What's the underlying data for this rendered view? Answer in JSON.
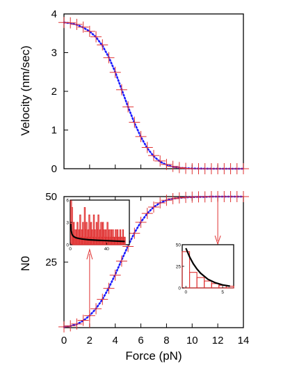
{
  "chart_data": [
    {
      "type": "line",
      "ylabel": "Velocity (nm/sec)",
      "xlim": [
        0,
        14
      ],
      "ylim": [
        0,
        4
      ],
      "y_ticks": [
        "0",
        "1",
        "2",
        "3",
        "4"
      ],
      "series": [
        {
          "style": "dotted-curve",
          "color": "#1a1aff",
          "x": [
            0,
            0.5,
            1,
            1.5,
            2,
            2.5,
            3,
            3.5,
            4,
            4.5,
            5,
            5.5,
            6,
            6.5,
            7,
            7.5,
            8,
            8.5,
            9,
            9.5,
            10,
            10.5,
            11,
            11.5,
            12,
            12.5,
            13,
            13.5,
            14
          ],
          "y": [
            3.78,
            3.76,
            3.72,
            3.65,
            3.55,
            3.4,
            3.18,
            2.88,
            2.5,
            2.05,
            1.6,
            1.18,
            0.82,
            0.53,
            0.32,
            0.18,
            0.1,
            0.05,
            0.025,
            0.012,
            0.006,
            0.003,
            0.001,
            0.0005,
            0,
            0,
            0,
            0,
            0
          ]
        },
        {
          "style": "crosses",
          "color": "#e03030",
          "x": [
            0,
            0.5,
            1,
            1.5,
            2,
            2.5,
            3,
            3.5,
            4,
            4.5,
            5,
            5.5,
            6,
            6.5,
            7,
            7.5,
            8,
            8.5,
            9,
            9.5,
            10,
            10.5,
            11,
            11.5,
            12,
            12.5,
            13,
            13.5,
            14
          ],
          "y": [
            3.78,
            3.77,
            3.73,
            3.66,
            3.55,
            3.41,
            3.2,
            2.87,
            2.49,
            2.04,
            1.6,
            1.2,
            0.83,
            0.55,
            0.34,
            0.2,
            0.11,
            0.06,
            0.03,
            0.01,
            0.0,
            0.0,
            0.0,
            0.0,
            0.0,
            0.0,
            0.0,
            0.0,
            0.0
          ]
        }
      ]
    },
    {
      "type": "line",
      "xlabel": "Force (pN)",
      "ylabel": "N0",
      "xlim": [
        0,
        14
      ],
      "ylim": [
        0,
        50
      ],
      "x_ticks": [
        "0",
        "2",
        "4",
        "6",
        "8",
        "10",
        "12",
        "14"
      ],
      "y_ticks": [
        "25",
        "50"
      ],
      "series": [
        {
          "style": "dotted-curve",
          "color": "#1a1aff",
          "x": [
            0,
            0.5,
            1,
            1.5,
            2,
            2.5,
            3,
            3.5,
            4,
            4.5,
            5,
            5.5,
            6,
            6.5,
            7,
            7.5,
            8,
            8.5,
            9,
            9.5,
            10,
            10.5,
            11,
            11.5,
            12,
            12.5,
            13,
            13.5,
            14
          ],
          "y": [
            0.3,
            0.6,
            1.3,
            2.6,
            4.6,
            7.3,
            10.8,
            15.2,
            20.3,
            25.8,
            31.2,
            36.2,
            40.3,
            43.6,
            46.0,
            47.6,
            48.6,
            49.2,
            49.5,
            49.7,
            49.8,
            49.9,
            49.9,
            50,
            50,
            50,
            50,
            50,
            50
          ]
        },
        {
          "style": "crosses",
          "color": "#e03030",
          "x": [
            0,
            0.5,
            1,
            1.5,
            2,
            2.5,
            3,
            3.5,
            4,
            4.5,
            5,
            5.5,
            6,
            6.5,
            7,
            7.5,
            8,
            8.5,
            9,
            9.5,
            10,
            10.5,
            11,
            11.5,
            12,
            12.5,
            13,
            13.5,
            14
          ],
          "y": [
            0.3,
            0.7,
            1.4,
            2.8,
            4.6,
            7.2,
            10.8,
            15.0,
            20.0,
            25.4,
            31.0,
            36.0,
            40.2,
            43.6,
            46.0,
            47.6,
            48.6,
            49.2,
            49.5,
            49.7,
            49.8,
            49.9,
            49.9,
            50,
            50,
            50,
            50,
            50,
            50
          ]
        }
      ],
      "arrows_at_force": [
        2,
        12
      ]
    },
    {
      "type": "bar",
      "role": "inset-left",
      "xlim": [
        0,
        65
      ],
      "ylim": [
        0,
        6
      ],
      "x_ticks": [
        "0",
        "40"
      ],
      "y_ticks": [
        "0",
        "3",
        "6"
      ],
      "bar_color": "#e03030",
      "bin_x": [
        1,
        2,
        3,
        4,
        5,
        6,
        7,
        8,
        9,
        10,
        11,
        12,
        13,
        14,
        15,
        16,
        17,
        18,
        19,
        20,
        21,
        22,
        23,
        24,
        25,
        26,
        27,
        28,
        29,
        30,
        31,
        32,
        33,
        34,
        35,
        36,
        37,
        38,
        39,
        40,
        41,
        42,
        43,
        44,
        45,
        46,
        47,
        48,
        49,
        50,
        51,
        52,
        53,
        54,
        55,
        56,
        57,
        58,
        59,
        60
      ],
      "values": [
        6,
        5,
        1,
        3,
        2,
        1,
        2,
        3,
        1,
        2,
        4,
        1,
        2,
        3,
        1,
        5,
        2,
        3,
        1,
        2,
        4,
        1,
        3,
        2,
        1,
        4,
        2,
        1,
        3,
        2,
        4,
        1,
        2,
        3,
        1,
        3,
        2,
        1,
        2,
        1,
        3,
        1,
        2,
        1,
        2,
        1,
        2,
        1,
        1,
        2,
        1,
        2,
        1,
        1,
        2,
        1,
        1,
        2,
        1,
        1
      ],
      "fit_x": [
        0.5,
        1,
        2,
        3,
        4,
        6,
        8,
        12,
        16,
        20,
        30,
        40,
        50,
        60
      ],
      "fit_y": [
        2.8,
        1.9,
        1.4,
        1.2,
        1.08,
        0.95,
        0.87,
        0.78,
        0.72,
        0.67,
        0.6,
        0.54,
        0.49,
        0.44
      ]
    },
    {
      "type": "bar",
      "role": "inset-right",
      "xlim": [
        -0.5,
        6.5
      ],
      "ylim": [
        0,
        50
      ],
      "x_ticks": [
        "0",
        "5"
      ],
      "y_ticks": [
        "0",
        "25",
        "50"
      ],
      "bar_color": "#e03030",
      "bin_x": [
        0,
        1,
        2,
        3,
        4,
        5,
        6
      ],
      "values": [
        42,
        18,
        12,
        8,
        5,
        3,
        2
      ],
      "fit_x": [
        0,
        0.5,
        1,
        1.5,
        2,
        3,
        4,
        5,
        6
      ],
      "fit_y": [
        46,
        36,
        28,
        22,
        17,
        10,
        6,
        3.5,
        2
      ]
    }
  ]
}
